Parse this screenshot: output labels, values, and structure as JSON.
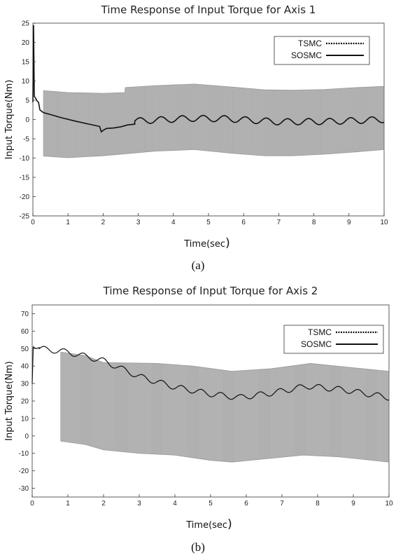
{
  "figures": [
    {
      "caption": "(a)",
      "chart": {
        "type": "line",
        "title": "Time Response of Input Torque for Axis 1",
        "xlabel": "Time(sec",
        "xlabel_paren": ")",
        "ylabel": "Input Torque(Nm)",
        "xlim": [
          0,
          10
        ],
        "ylim": [
          -25,
          25
        ],
        "xticks": [
          0,
          1,
          2,
          3,
          4,
          5,
          6,
          7,
          8,
          9,
          10
        ],
        "yticks": [
          25,
          20,
          15,
          10,
          5,
          0,
          -5,
          -10,
          -15,
          -20,
          -25
        ],
        "grid": false,
        "legend_placement": "top-right",
        "series": [
          {
            "name": "TSMC",
            "style": "dotted",
            "color": "#888888",
            "band_start_x": 0.3,
            "upper": [
              [
                0.3,
                7.5
              ],
              [
                1.0,
                7.0
              ],
              [
                2.0,
                6.8
              ],
              [
                2.62,
                7.0
              ],
              [
                2.63,
                8.3
              ],
              [
                3.5,
                8.8
              ],
              [
                4.6,
                9.2
              ],
              [
                5.7,
                8.4
              ],
              [
                6.6,
                7.7
              ],
              [
                7.4,
                7.6
              ],
              [
                8.3,
                7.8
              ],
              [
                9.2,
                8.3
              ],
              [
                10.0,
                8.6
              ]
            ],
            "lower": [
              [
                0.3,
                -9.5
              ],
              [
                1.0,
                -9.9
              ],
              [
                2.0,
                -9.4
              ],
              [
                2.62,
                -8.9
              ],
              [
                3.5,
                -8.2
              ],
              [
                4.6,
                -7.8
              ],
              [
                5.7,
                -8.8
              ],
              [
                6.6,
                -9.4
              ],
              [
                7.4,
                -9.4
              ],
              [
                8.3,
                -9.0
              ],
              [
                9.2,
                -8.4
              ],
              [
                10.0,
                -7.8
              ]
            ]
          },
          {
            "name": "SOSMC",
            "style": "solid",
            "color": "#111111",
            "points": [
              [
                0,
                4.5
              ],
              [
                0.02,
                24.5
              ],
              [
                0.04,
                6
              ],
              [
                0.08,
                5.5
              ],
              [
                0.12,
                4.8
              ],
              [
                0.16,
                4.5
              ],
              [
                0.2,
                2.5
              ],
              [
                0.3,
                1.8
              ],
              [
                0.5,
                1.3
              ],
              [
                0.8,
                0.5
              ],
              [
                1.2,
                -0.4
              ],
              [
                1.6,
                -1.2
              ],
              [
                1.9,
                -1.8
              ],
              [
                1.95,
                -3.2
              ],
              [
                2.0,
                -2.8
              ],
              [
                2.1,
                -2.3
              ],
              [
                2.3,
                -2.2
              ],
              [
                2.5,
                -1.9
              ],
              [
                2.7,
                -1.4
              ],
              [
                2.9,
                -1.2
              ]
            ],
            "osc": {
              "from": 2.9,
              "to": 10,
              "period": 0.6,
              "amp": 0.8,
              "mean_pts": [
                [
                  2.9,
                  -0.4
                ],
                [
                  4.5,
                  0.3
                ],
                [
                  5.5,
                  0.2
                ],
                [
                  7.0,
                  -0.6
                ],
                [
                  8.5,
                  -0.5
                ],
                [
                  10,
                  0.0
                ]
              ]
            }
          }
        ]
      }
    },
    {
      "caption": "(b)",
      "chart": {
        "type": "line",
        "title": "Time Response of Input Torque for Axis 2",
        "xlabel": "Time(sec",
        "xlabel_paren": ")",
        "ylabel": "Input Torque(Nm)",
        "xlim": [
          0,
          10
        ],
        "ylim": [
          -35,
          75
        ],
        "xticks": [
          0,
          1,
          2,
          3,
          4,
          5,
          6,
          7,
          8,
          9,
          10
        ],
        "yticks": [
          70,
          60,
          50,
          40,
          30,
          20,
          10,
          0,
          -10,
          -20,
          -30
        ],
        "grid": false,
        "legend_placement": "top-right",
        "series": [
          {
            "name": "TSMC",
            "style": "dotted",
            "color": "#888888",
            "band_start_x": 0.8,
            "upper": [
              [
                0.8,
                48
              ],
              [
                1.5,
                46
              ],
              [
                2.0,
                42
              ],
              [
                3.5,
                41.5
              ],
              [
                4.5,
                40
              ],
              [
                5.6,
                37
              ],
              [
                6.7,
                38.5
              ],
              [
                7.8,
                41.5
              ],
              [
                9.0,
                39
              ],
              [
                10.0,
                37
              ]
            ],
            "lower": [
              [
                0.8,
                -3
              ],
              [
                1.5,
                -5
              ],
              [
                2.0,
                -8
              ],
              [
                3.0,
                -10
              ],
              [
                4.0,
                -11
              ],
              [
                5.0,
                -14
              ],
              [
                5.6,
                -15
              ],
              [
                6.6,
                -13
              ],
              [
                7.6,
                -11
              ],
              [
                8.6,
                -12
              ],
              [
                10.0,
                -15
              ]
            ]
          },
          {
            "name": "SOSMC",
            "style": "solid",
            "color": "#111111",
            "points": [
              [
                0,
                30
              ],
              [
                0.03,
                51
              ],
              [
                0.1,
                50
              ],
              [
                0.2,
                50.5
              ]
            ],
            "osc": {
              "from": 0.2,
              "to": 10,
              "period": 0.55,
              "amp": 1.6,
              "mean_pts": [
                [
                  0.2,
                  50
                ],
                [
                  1.0,
                  48
                ],
                [
                  2.0,
                  43
                ],
                [
                  3.0,
                  34
                ],
                [
                  4.0,
                  28
                ],
                [
                  5.0,
                  24
                ],
                [
                  5.8,
                  22
                ],
                [
                  6.7,
                  24.5
                ],
                [
                  7.7,
                  28.5
                ],
                [
                  8.7,
                  26.5
                ],
                [
                  10.0,
                  22
                ]
              ]
            }
          }
        ]
      }
    }
  ]
}
